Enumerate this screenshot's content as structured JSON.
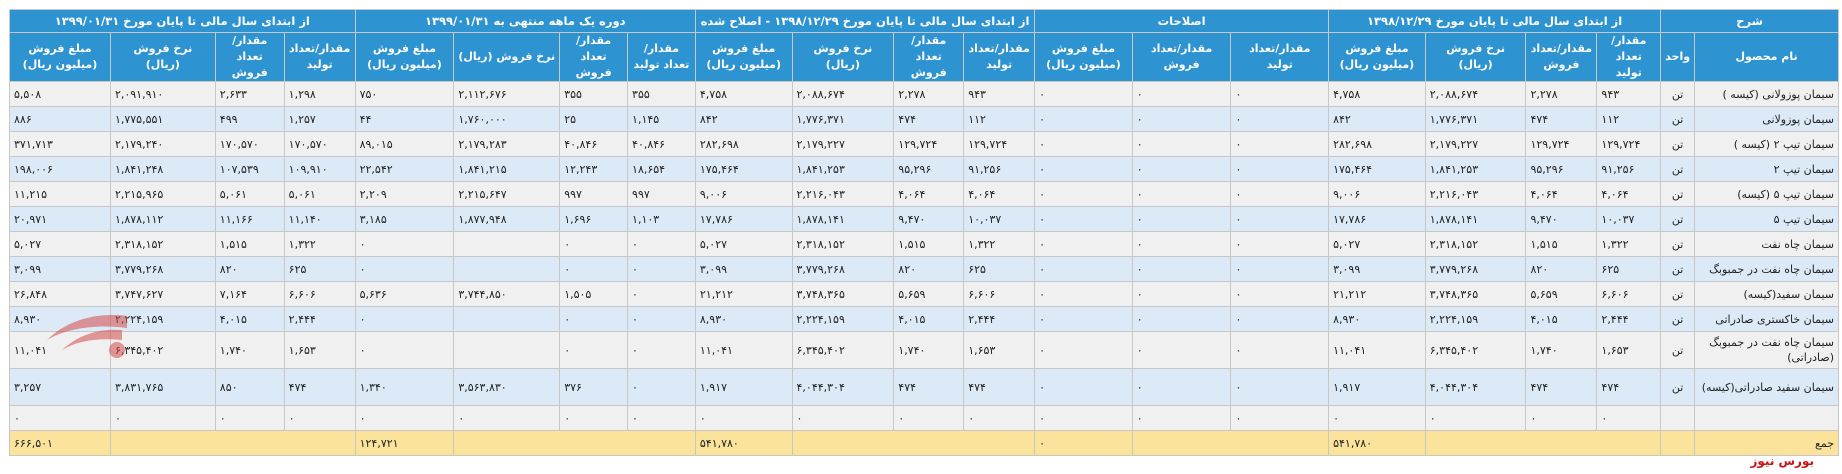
{
  "header_groups": {
    "desc": "شرح",
    "g1": "از ابتدای سال مالی تا پایان مورخ ۱۳۹۸/۱۲/۲۹",
    "g2": "اصلاحات",
    "g3": "از ابتدای سال مالی تا پایان مورخ ۱۳۹۸/۱۲/۲۹ - اصلاح شده",
    "g4": "دوره یک ماهه منتهی به ۱۳۹۹/۰۱/۳۱",
    "g5": "از ابتدای سال مالی تا پایان مورخ ۱۳۹۹/۰۱/۳۱"
  },
  "columns": {
    "name": "نام محصول",
    "unit": "واحد",
    "prod": "مقدار/تعداد تولید",
    "sale_qty": "مقدار/تعداد فروش",
    "rate": "نرخ فروش (ریال)",
    "amount": "مبلغ فروش (میلیون ریال)"
  },
  "rows": [
    {
      "name": "سیمان پوزولانی (کیسه )",
      "unit": "تن",
      "g1": [
        "۹۴۳",
        "۲,۲۷۸",
        "۲,۰۸۸,۶۷۴",
        "۴,۷۵۸"
      ],
      "g2": [
        "۰",
        "۰",
        "۰"
      ],
      "g3": [
        "۹۴۳",
        "۲,۲۷۸",
        "۲,۰۸۸,۶۷۴",
        "۴,۷۵۸"
      ],
      "g4": [
        "۳۵۵",
        "۳۵۵",
        "۲,۱۱۲,۶۷۶",
        "۷۵۰"
      ],
      "g5": [
        "۱,۲۹۸",
        "۲,۶۳۳",
        "۲,۰۹۱,۹۱۰",
        "۵,۵۰۸"
      ]
    },
    {
      "name": "سیمان پوزولانی",
      "unit": "تن",
      "g1": [
        "۱۱۲",
        "۴۷۴",
        "۱,۷۷۶,۳۷۱",
        "۸۴۲"
      ],
      "g2": [
        "۰",
        "۰",
        "۰"
      ],
      "g3": [
        "۱۱۲",
        "۴۷۴",
        "۱,۷۷۶,۳۷۱",
        "۸۴۲"
      ],
      "g4": [
        "۱,۱۴۵",
        "۲۵",
        "۱,۷۶۰,۰۰۰",
        "۴۴"
      ],
      "g5": [
        "۱,۲۵۷",
        "۴۹۹",
        "۱,۷۷۵,۵۵۱",
        "۸۸۶"
      ]
    },
    {
      "name": "سیمان تیپ ۲ (کیسه )",
      "unit": "تن",
      "g1": [
        "۱۲۹,۷۲۴",
        "۱۲۹,۷۲۴",
        "۲,۱۷۹,۲۲۷",
        "۲۸۲,۶۹۸"
      ],
      "g2": [
        "۰",
        "۰",
        "۰"
      ],
      "g3": [
        "۱۲۹,۷۲۴",
        "۱۲۹,۷۲۴",
        "۲,۱۷۹,۲۲۷",
        "۲۸۲,۶۹۸"
      ],
      "g4": [
        "۴۰,۸۴۶",
        "۴۰,۸۴۶",
        "۲,۱۷۹,۲۸۳",
        "۸۹,۰۱۵"
      ],
      "g5": [
        "۱۷۰,۵۷۰",
        "۱۷۰,۵۷۰",
        "۲,۱۷۹,۲۴۰",
        "۳۷۱,۷۱۳"
      ]
    },
    {
      "name": "سیمان تیپ ۲",
      "unit": "تن",
      "g1": [
        "۹۱,۲۵۶",
        "۹۵,۲۹۶",
        "۱,۸۴۱,۲۵۳",
        "۱۷۵,۴۶۴"
      ],
      "g2": [
        "۰",
        "۰",
        "۰"
      ],
      "g3": [
        "۹۱,۲۵۶",
        "۹۵,۲۹۶",
        "۱,۸۴۱,۲۵۳",
        "۱۷۵,۴۶۴"
      ],
      "g4": [
        "۱۸,۶۵۴",
        "۱۲,۲۴۳",
        "۱,۸۴۱,۲۱۵",
        "۲۲,۵۴۲"
      ],
      "g5": [
        "۱۰۹,۹۱۰",
        "۱۰۷,۵۳۹",
        "۱,۸۴۱,۲۴۸",
        "۱۹۸,۰۰۶"
      ]
    },
    {
      "name": "سیمان تیپ ۵ (کیسه)",
      "unit": "تن",
      "g1": [
        "۴,۰۶۴",
        "۴,۰۶۴",
        "۲,۲۱۶,۰۴۳",
        "۹,۰۰۶"
      ],
      "g2": [
        "۰",
        "۰",
        "۰"
      ],
      "g3": [
        "۴,۰۶۴",
        "۴,۰۶۴",
        "۲,۲۱۶,۰۴۳",
        "۹,۰۰۶"
      ],
      "g4": [
        "۹۹۷",
        "۹۹۷",
        "۲,۲۱۵,۶۴۷",
        "۲,۲۰۹"
      ],
      "g5": [
        "۵,۰۶۱",
        "۵,۰۶۱",
        "۲,۲۱۵,۹۶۵",
        "۱۱,۲۱۵"
      ]
    },
    {
      "name": "سیمان تیپ ۵",
      "unit": "تن",
      "g1": [
        "۱۰,۰۳۷",
        "۹,۴۷۰",
        "۱,۸۷۸,۱۴۱",
        "۱۷,۷۸۶"
      ],
      "g2": [
        "۰",
        "۰",
        "۰"
      ],
      "g3": [
        "۱۰,۰۳۷",
        "۹,۴۷۰",
        "۱,۸۷۸,۱۴۱",
        "۱۷,۷۸۶"
      ],
      "g4": [
        "۱,۱۰۳",
        "۱,۶۹۶",
        "۱,۸۷۷,۹۴۸",
        "۳,۱۸۵"
      ],
      "g5": [
        "۱۱,۱۴۰",
        "۱۱,۱۶۶",
        "۱,۸۷۸,۱۱۲",
        "۲۰,۹۷۱"
      ]
    },
    {
      "name": "سیمان چاه نفت",
      "unit": "تن",
      "g1": [
        "۱,۳۲۲",
        "۱,۵۱۵",
        "۲,۳۱۸,۱۵۲",
        "۵,۰۲۷"
      ],
      "g2": [
        "۰",
        "۰",
        "۰"
      ],
      "g3": [
        "۱,۳۲۲",
        "۱,۵۱۵",
        "۲,۳۱۸,۱۵۲",
        "۵,۰۲۷"
      ],
      "g4": [
        "۰",
        "۰",
        "",
        "۰"
      ],
      "g5": [
        "۱,۳۲۲",
        "۱,۵۱۵",
        "۲,۳۱۸,۱۵۲",
        "۵,۰۲۷"
      ]
    },
    {
      "name": "سیمان چاه نفت در جمبوبگ",
      "unit": "تن",
      "g1": [
        "۶۲۵",
        "۸۲۰",
        "۳,۷۷۹,۲۶۸",
        "۳,۰۹۹"
      ],
      "g2": [
        "۰",
        "۰",
        "۰"
      ],
      "g3": [
        "۶۲۵",
        "۸۲۰",
        "۳,۷۷۹,۲۶۸",
        "۳,۰۹۹"
      ],
      "g4": [
        "۰",
        "۰",
        "",
        "۰"
      ],
      "g5": [
        "۶۲۵",
        "۸۲۰",
        "۳,۷۷۹,۲۶۸",
        "۳,۰۹۹"
      ]
    },
    {
      "name": "سیمان سفید(کیسه)",
      "unit": "تن",
      "g1": [
        "۶,۶۰۶",
        "۵,۶۵۹",
        "۳,۷۴۸,۳۶۵",
        "۲۱,۲۱۲"
      ],
      "g2": [
        "۰",
        "۰",
        "۰"
      ],
      "g3": [
        "۶,۶۰۶",
        "۵,۶۵۹",
        "۳,۷۴۸,۳۶۵",
        "۲۱,۲۱۲"
      ],
      "g4": [
        "۰",
        "۱,۵۰۵",
        "۳,۷۴۴,۸۵۰",
        "۵,۶۳۶"
      ],
      "g5": [
        "۶,۶۰۶",
        "۷,۱۶۴",
        "۳,۷۴۷,۶۲۷",
        "۲۶,۸۴۸"
      ]
    },
    {
      "name": "سیمان خاکستری صادراتی",
      "unit": "تن",
      "g1": [
        "۲,۴۴۴",
        "۴,۰۱۵",
        "۲,۲۲۴,۱۵۹",
        "۸,۹۳۰"
      ],
      "g2": [
        "۰",
        "۰",
        "۰"
      ],
      "g3": [
        "۲,۴۴۴",
        "۴,۰۱۵",
        "۲,۲۲۴,۱۵۹",
        "۸,۹۳۰"
      ],
      "g4": [
        "۰",
        "۰",
        "",
        "۰"
      ],
      "g5": [
        "۲,۴۴۴",
        "۴,۰۱۵",
        "۲,۲۲۴,۱۵۹",
        "۸,۹۳۰"
      ]
    },
    {
      "name": "سیمان چاه نفت در جمبوبگ (صادراتی)",
      "unit": "تن",
      "tall": true,
      "g1": [
        "۱,۶۵۳",
        "۱,۷۴۰",
        "۶,۳۴۵,۴۰۲",
        "۱۱,۰۴۱"
      ],
      "g2": [
        "۰",
        "۰",
        "۰"
      ],
      "g3": [
        "۱,۶۵۳",
        "۱,۷۴۰",
        "۶,۳۴۵,۴۰۲",
        "۱۱,۰۴۱"
      ],
      "g4": [
        "۰",
        "۰",
        "",
        "۰"
      ],
      "g5": [
        "۱,۶۵۳",
        "۱,۷۴۰",
        "۶,۳۴۵,۴۰۲",
        "۱۱,۰۴۱"
      ]
    },
    {
      "name": "سیمان سفید صادراتی(کیسه)",
      "unit": "تن",
      "tall": true,
      "g1": [
        "۴۷۴",
        "۴۷۴",
        "۴,۰۴۴,۳۰۴",
        "۱,۹۱۷"
      ],
      "g2": [
        "۰",
        "۰",
        "۰"
      ],
      "g3": [
        "۴۷۴",
        "۴۷۴",
        "۴,۰۴۴,۳۰۴",
        "۱,۹۱۷"
      ],
      "g4": [
        "۰",
        "۳۷۶",
        "۳,۵۶۳,۸۳۰",
        "۱,۳۴۰"
      ],
      "g5": [
        "۴۷۴",
        "۸۵۰",
        "۳,۸۳۱,۷۶۵",
        "۳,۲۵۷"
      ]
    },
    {
      "name": "",
      "unit": "",
      "g1": [
        "۰",
        "۰",
        "۰",
        "۰"
      ],
      "g2": [
        "۰",
        "۰",
        "۰"
      ],
      "g3": [
        "۰",
        "۰",
        "۰",
        "۰"
      ],
      "g4": [
        "۰",
        "۰",
        "۰",
        "۰"
      ],
      "g5": [
        "۰",
        "۰",
        "۰",
        "۰"
      ]
    }
  ],
  "total": {
    "label": "جمع",
    "g1": "۵۴۱,۷۸۰",
    "g2": "۰",
    "g3": "۵۴۱,۷۸۰",
    "g4": "۱۲۴,۷۲۱",
    "g5": "۶۶۶,۵۰۱"
  },
  "footer": "بورس نیوز",
  "logo_text": "بورس نیوز",
  "colors": {
    "header": "#2e93d1",
    "row_gray": "#f0f0f0",
    "row_blue": "#dce9f7",
    "total": "#fbe39c",
    "brand": "#cc1111"
  }
}
